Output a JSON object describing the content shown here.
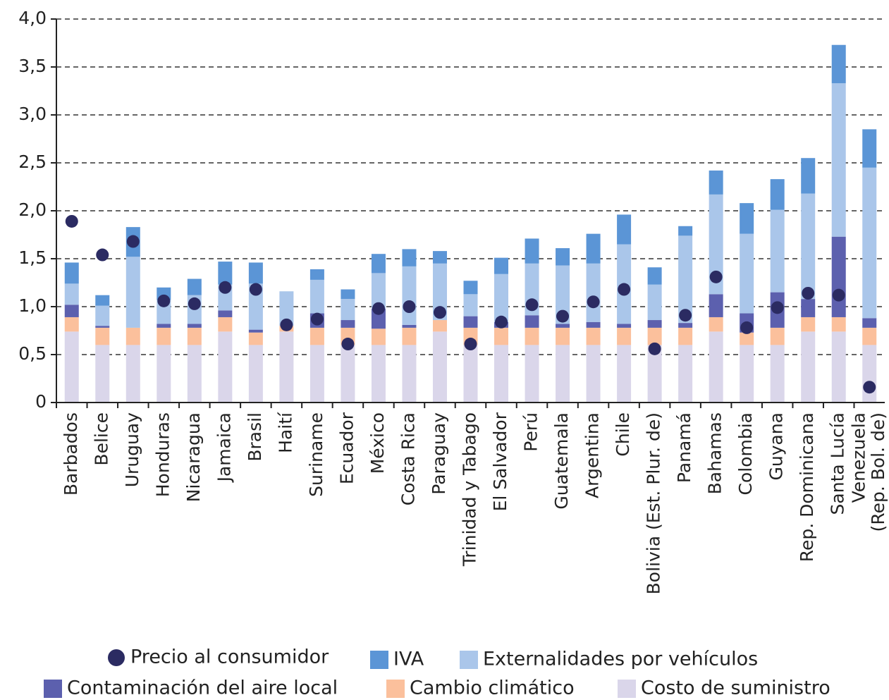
{
  "chart_data": {
    "type": "stacked_bar",
    "categories": [
      "Barbados",
      "Belice",
      "Uruguay",
      "Honduras",
      "Nicaragua",
      "Jamaica",
      "Brasil",
      "Haití",
      "Suriname",
      "Ecuador",
      "México",
      "Costa Rica",
      "Paraguay",
      "Trinidad y Tabago",
      "El Salvador",
      "Perú",
      "Guatemala",
      "Argentina",
      "Chile",
      "Bolivia (Est. Plur. de)",
      "Panamá",
      "Bahamas",
      "Colombia",
      "Guyana",
      "Rep. Dominicana",
      "Santa Lucía",
      "Venezuela\n(Rep. Bol. de)"
    ],
    "series": [
      {
        "name": "Costo de suministro",
        "color": "#dad6ea",
        "values": [
          0.74,
          0.6,
          0.6,
          0.6,
          0.6,
          0.74,
          0.6,
          0.74,
          0.6,
          0.6,
          0.6,
          0.6,
          0.74,
          0.6,
          0.6,
          0.6,
          0.6,
          0.6,
          0.6,
          0.6,
          0.6,
          0.74,
          0.6,
          0.6,
          0.74,
          0.74,
          0.6
        ]
      },
      {
        "name": "Cambio climático",
        "color": "#fbc09c",
        "values": [
          0.15,
          0.18,
          0.18,
          0.18,
          0.18,
          0.15,
          0.13,
          0.06,
          0.18,
          0.18,
          0.17,
          0.18,
          0.12,
          0.18,
          0.18,
          0.18,
          0.18,
          0.18,
          0.18,
          0.18,
          0.18,
          0.15,
          0.13,
          0.18,
          0.15,
          0.15,
          0.18
        ]
      },
      {
        "name": "Contaminación del aire local",
        "color": "#5c60ae",
        "values": [
          0.13,
          0.02,
          0,
          0.04,
          0.04,
          0.07,
          0.03,
          0,
          0.15,
          0.08,
          0.21,
          0.03,
          0,
          0.12,
          0.06,
          0.13,
          0.04,
          0.06,
          0.04,
          0.08,
          0.05,
          0.24,
          0.2,
          0.37,
          0.19,
          0.84,
          0.1
        ]
      },
      {
        "name": "Externalidades por vehículos",
        "color": "#aac6ea",
        "values": [
          0.22,
          0.21,
          0.74,
          0.25,
          0.3,
          0.27,
          0.48,
          0.36,
          0.35,
          0.22,
          0.37,
          0.61,
          0.59,
          0.23,
          0.5,
          0.54,
          0.61,
          0.61,
          0.83,
          0.37,
          0.91,
          1.04,
          0.83,
          0.86,
          1.1,
          1.6,
          1.57
        ]
      },
      {
        "name": "IVA",
        "color": "#5b95d6",
        "values": [
          0.22,
          0.11,
          0.31,
          0.13,
          0.17,
          0.24,
          0.22,
          0,
          0.11,
          0.1,
          0.2,
          0.18,
          0.13,
          0.14,
          0.17,
          0.26,
          0.18,
          0.31,
          0.31,
          0.18,
          0.1,
          0.25,
          0.32,
          0.32,
          0.37,
          0.4,
          0.4
        ]
      }
    ],
    "markers": {
      "name": "Precio al consumidor",
      "color": "#2b2b62",
      "values": [
        1.89,
        1.54,
        1.68,
        1.06,
        1.03,
        1.2,
        1.18,
        0.81,
        0.87,
        0.61,
        0.98,
        1.0,
        0.94,
        0.61,
        0.84,
        1.02,
        0.9,
        1.05,
        1.18,
        0.56,
        0.91,
        1.31,
        0.78,
        0.99,
        1.14,
        1.12,
        0.16
      ]
    },
    "ylim": [
      0,
      4
    ],
    "yticks": [
      0,
      {
        "value": 0.5,
        "label": "0,5"
      },
      {
        "value": 1,
        "label": "1,0"
      },
      {
        "value": 1.5,
        "label": "1,5"
      },
      {
        "value": 2,
        "label": "2,0"
      },
      {
        "value": 2.5,
        "label": "2,5"
      },
      {
        "value": 3,
        "label": "3,0"
      },
      {
        "value": 3.5,
        "label": "3,5"
      },
      {
        "value": 4,
        "label": "4,0"
      }
    ],
    "grid": true
  }
}
